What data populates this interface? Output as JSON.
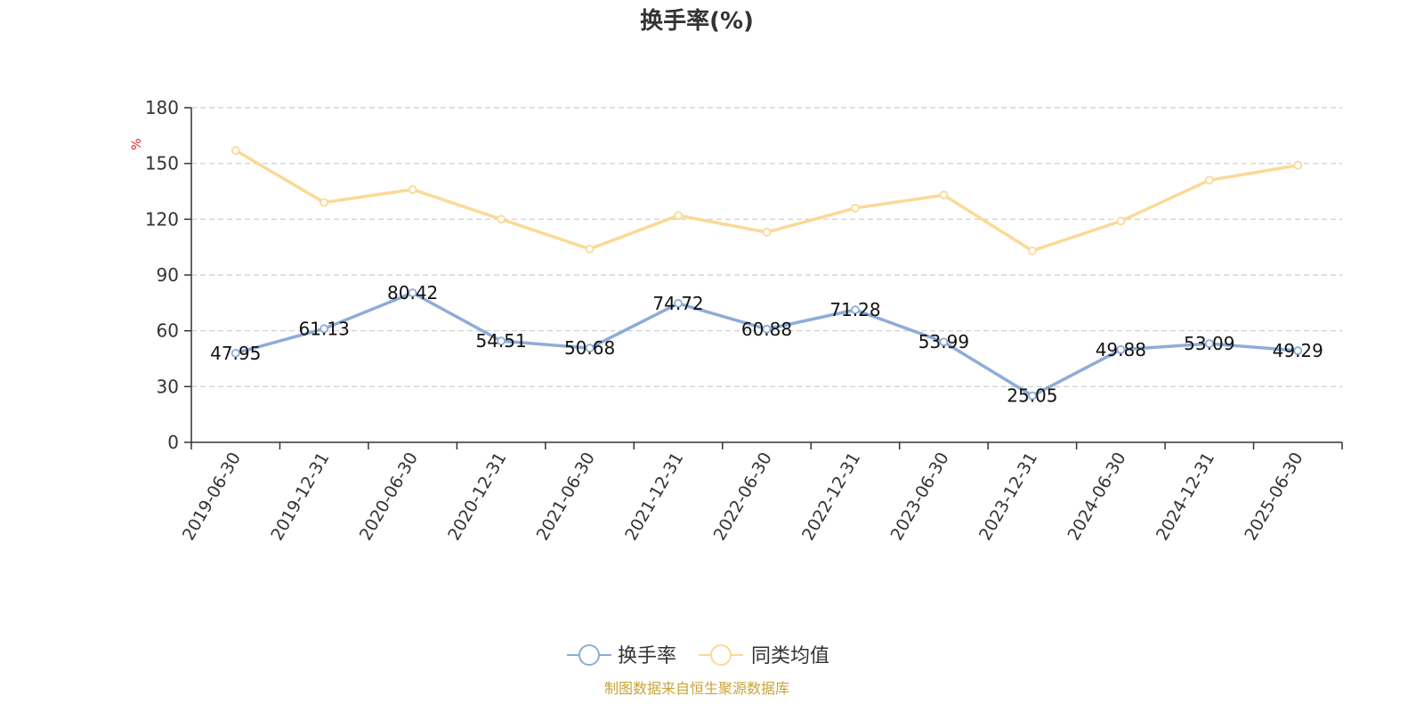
{
  "chart_data": {
    "type": "line",
    "title": "换手率(%)",
    "ylabel": "%",
    "categories": [
      "2019-06-30",
      "2019-12-31",
      "2020-06-30",
      "2020-12-31",
      "2021-06-30",
      "2021-12-31",
      "2022-06-30",
      "2022-12-31",
      "2023-06-30",
      "2023-12-31",
      "2024-06-30",
      "2024-12-31",
      "2025-06-30"
    ],
    "series": [
      {
        "name": "换手率",
        "color": "#8eacd8",
        "show_labels": true,
        "values": [
          47.95,
          61.13,
          80.42,
          54.51,
          50.68,
          74.72,
          60.88,
          71.28,
          53.99,
          25.05,
          49.88,
          53.09,
          49.29
        ]
      },
      {
        "name": "同类均值",
        "color": "#fbd996",
        "show_labels": false,
        "values": [
          157,
          129,
          136,
          120,
          104,
          122,
          113,
          126,
          133,
          103,
          119,
          141,
          149
        ]
      }
    ],
    "yticks": [
      0,
      30,
      60,
      90,
      120,
      150,
      180
    ],
    "ylim": [
      0,
      180
    ],
    "grid": true,
    "legend_position": "bottom-center"
  },
  "source": {
    "text": "制图数据来自恒生聚源数据库",
    "color": "#c8a43a"
  }
}
